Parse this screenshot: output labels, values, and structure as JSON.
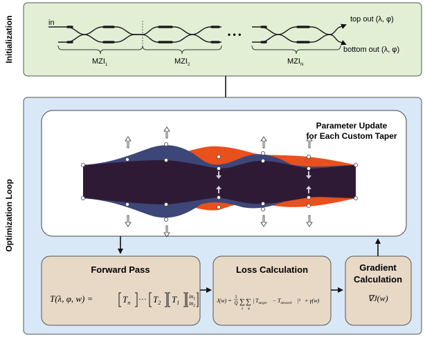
{
  "sections": {
    "initialization_label": "Initialization",
    "optimization_label": "Optimization Loop"
  },
  "init": {
    "input_label": "in",
    "top_out": "top out (λ, φ)",
    "bottom_out": "bottom out (λ, φ)",
    "ellipsis": "• • •",
    "mzi": [
      {
        "base": "MZI",
        "sub": "1"
      },
      {
        "base": "MZI",
        "sub": "2"
      },
      {
        "base": "MZI",
        "sub": "N"
      }
    ]
  },
  "parameter_update": {
    "title_line1": "Parameter Update",
    "title_line2": "for Each Custom Taper"
  },
  "forward_pass": {
    "title": "Forward Pass",
    "eq_lhs": "T(λ, φ, w) =",
    "t_n": "T",
    "t_n_sub": "n",
    "dots": "···",
    "t_2": "T",
    "t_2_sub": "2",
    "t_1": "T",
    "t_1_sub": "1",
    "in1": "in",
    "in1_sub": "1",
    "in2": "in",
    "in2_sub": "2"
  },
  "loss": {
    "title": "Loss Calculation",
    "eq_lhs": "J(w) =",
    "frac_num": "1",
    "frac_den": "Q",
    "sum_lambda": "λ",
    "sum_phi": "φ",
    "target": "T",
    "target_sub": "target",
    "minus": "−",
    "network": "T",
    "network_sub": "network",
    "tail": "+ γ(w)"
  },
  "gradient": {
    "title_line1": "Gradient",
    "title_line2": "Calculation",
    "eq": "∇J(w)"
  },
  "colors": {
    "init_bg": "#e2efd5",
    "loop_bg": "#d8e8f7",
    "box_bg": "#e8d9c7",
    "taper_dark": "#2f1a36",
    "taper_blue": "#3d4678",
    "taper_orange": "#e8501e"
  }
}
